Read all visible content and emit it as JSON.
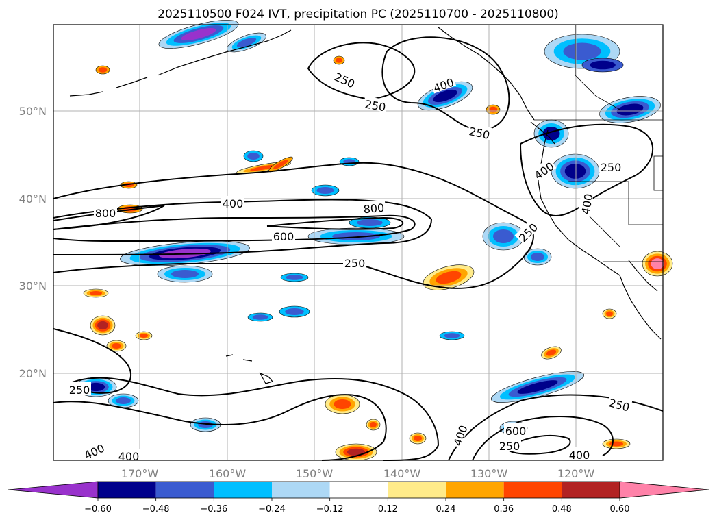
{
  "title": "2025110500 F024 IVT, precipitation PC (2025110700 - 2025110800)",
  "map": {
    "lat_labels": [
      "50°N",
      "40°N",
      "30°N",
      "20°N"
    ],
    "lon_labels": [
      "170°W",
      "160°W",
      "150°W",
      "140°W",
      "130°W",
      "120°W"
    ]
  },
  "ivt_contour_labels": [
    {
      "text": "250",
      "rot": 25
    },
    {
      "text": "250",
      "rot": 10
    },
    {
      "text": "250",
      "rot": 12
    },
    {
      "text": "400",
      "rot": -20
    },
    {
      "text": "250",
      "rot": 0
    },
    {
      "text": "400",
      "rot": -35
    },
    {
      "text": "400",
      "rot": -80
    },
    {
      "text": "400",
      "rot": 0
    },
    {
      "text": "800",
      "rot": 0
    },
    {
      "text": "800",
      "rot": -5
    },
    {
      "text": "600",
      "rot": 0
    },
    {
      "text": "250",
      "rot": 0
    },
    {
      "text": "250",
      "rot": -45
    },
    {
      "text": "250",
      "rot": 0
    },
    {
      "text": "400",
      "rot": -25
    },
    {
      "text": "400",
      "rot": 0
    },
    {
      "text": "400",
      "rot": -70
    },
    {
      "text": "600",
      "rot": 0
    },
    {
      "text": "250",
      "rot": 0
    },
    {
      "text": "250",
      "rot": 15
    },
    {
      "text": "400",
      "rot": 0
    }
  ],
  "colorbar": {
    "ticks": [
      "−0.60",
      "−0.48",
      "−0.36",
      "−0.24",
      "−0.12",
      "0.12",
      "0.24",
      "0.36",
      "0.48",
      "0.60"
    ],
    "colors": [
      "#9932CC",
      "#00008B",
      "#3A5BD0",
      "#00BFFF",
      "#ADD8F5",
      "#FFFFFF",
      "#FFEB8A",
      "#FFA500",
      "#FF4500",
      "#B22222",
      "#FF82A9"
    ]
  },
  "precip_palette": {
    "neg_strong": "#9932CC",
    "neg_dark": "#00008B",
    "neg_mid": "#3A5BD0",
    "neg_light": "#00BFFF",
    "neg_faint": "#ADD8F5",
    "pos_faint": "#FFEB8A",
    "pos_light": "#FFA500",
    "pos_mid": "#FF4500",
    "pos_dark": "#B22222",
    "pos_strong": "#FF82A9"
  }
}
